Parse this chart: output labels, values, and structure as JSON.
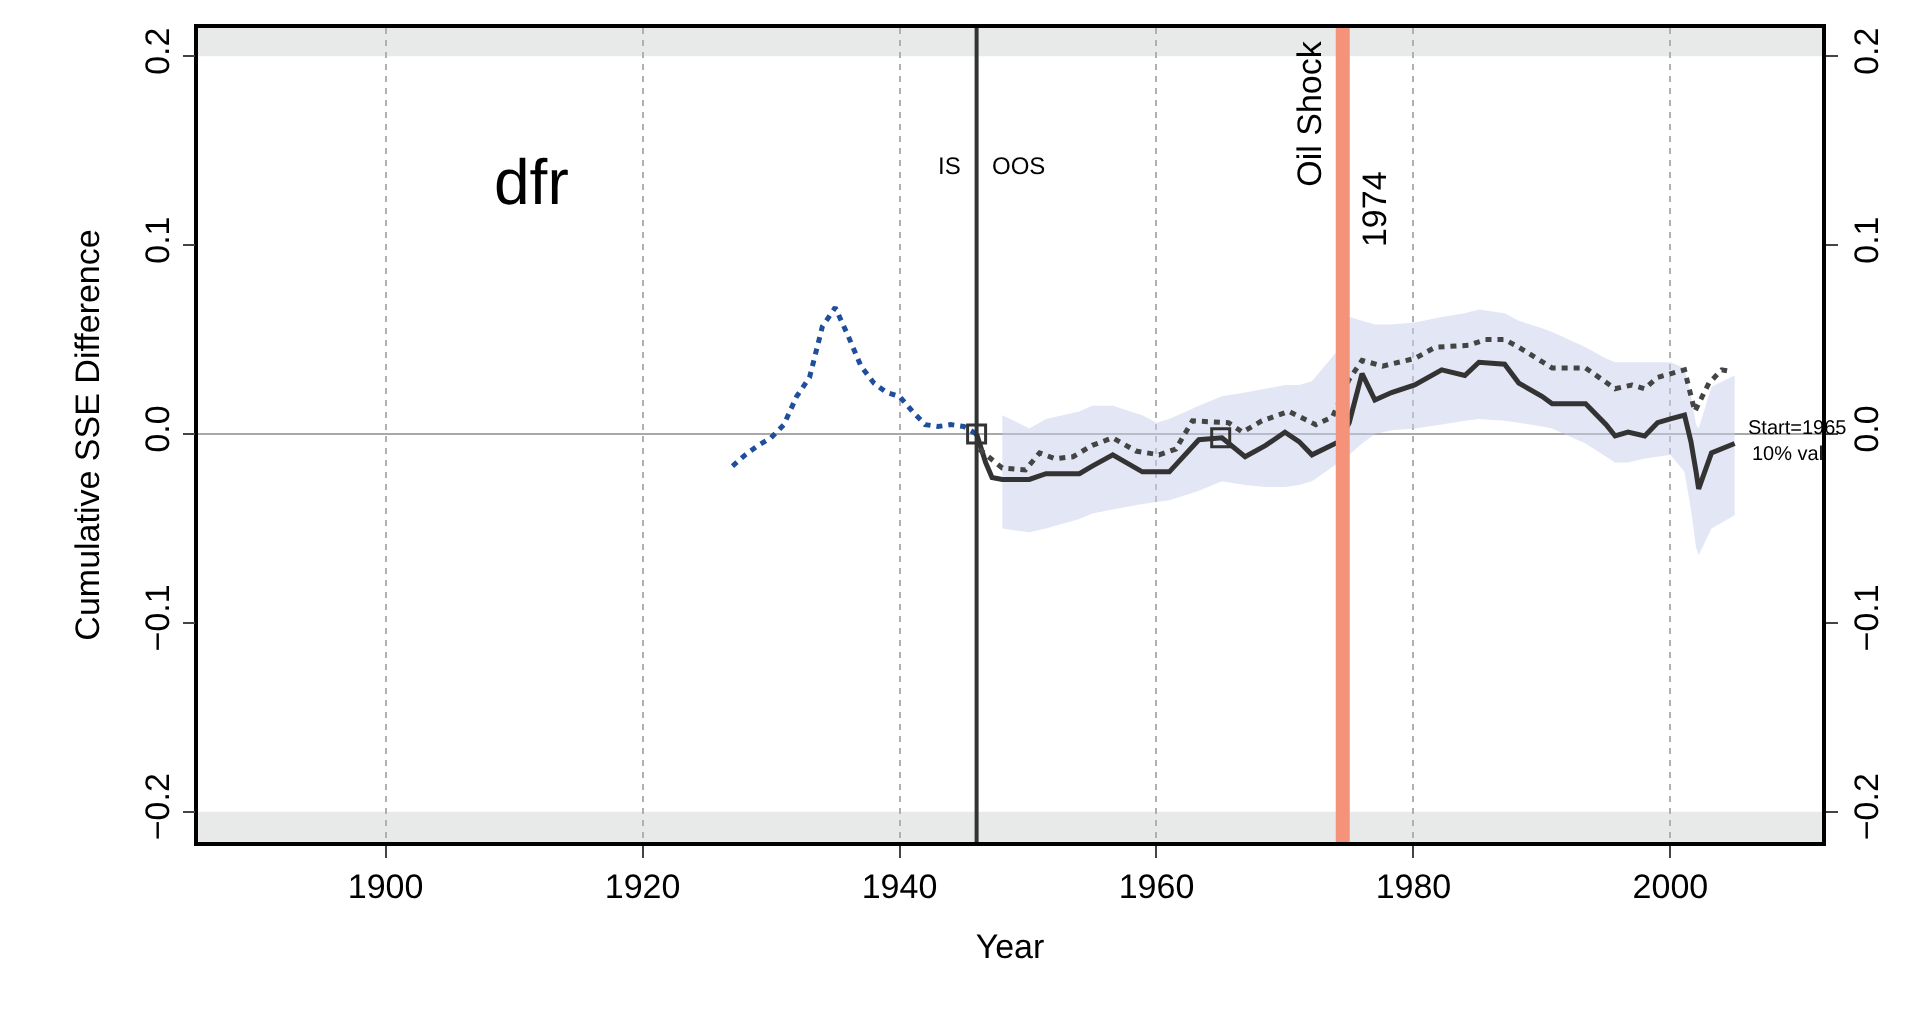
{
  "chart_data": {
    "type": "line",
    "title": "dfr",
    "xlabel": "Year",
    "ylabel": "Cumulative SSE Difference",
    "xlim": [
      1885.4,
      2011.8
    ],
    "xticks": [
      1900,
      1920,
      1940,
      1960,
      1980,
      2000
    ],
    "ylim": [
      -0.216,
      0.215
    ],
    "yticks": [
      {
        "value": -0.2,
        "label": "−0.2"
      },
      {
        "value": -0.1,
        "label": "−0.1"
      },
      {
        "value": 0,
        "label": "0.0"
      },
      0.1,
      0.2
    ],
    "y2lim": [
      -0.216,
      0.215
    ],
    "y2ticks": [
      {
        "value": -0.2,
        "label": "−0.2"
      },
      {
        "value": -0.1,
        "label": "−0.1"
      },
      {
        "value": 0,
        "label": "0.0"
      },
      0.1,
      0.2
    ],
    "grid": "x",
    "series": [
      {
        "color": "#1f4e9c",
        "line_style": "dotted",
        "marker": "none",
        "x": [
          1927,
          1928,
          1929,
          1930,
          1931,
          1932,
          1933,
          1934,
          1935,
          1936,
          1937,
          1938,
          1939,
          1940,
          1941,
          1942,
          1943,
          1944,
          1945,
          1946
        ],
        "values": [
          -0.017,
          -0.011,
          -0.006,
          -0.002,
          0.005,
          0.02,
          0.03,
          0.057,
          0.067,
          0.052,
          0.036,
          0.027,
          0.022,
          0.02,
          0.012,
          0.005,
          0.004,
          0.005,
          0.004,
          0.0
        ]
      },
      {
        "color": "#333333",
        "line_style": "solid",
        "marker": "none",
        "x": [
          1946,
          1946.7,
          1947.2,
          1948,
          1950.1,
          1951.4,
          1954,
          1955,
          1956.6,
          1958.9,
          1960,
          1961,
          1963.3,
          1965.1,
          1966.9,
          1968.5,
          1970,
          1971.1,
          1972.1,
          1974.2,
          1975,
          1976,
          1977,
          1978.3,
          1980.1,
          1982.2,
          1984,
          1985.1,
          1987.1,
          1988.2,
          1990,
          1990.8,
          1993.4,
          1995,
          1995.7,
          1996.7,
          1998,
          1999,
          2000,
          2001.1,
          2001.6,
          2002,
          2002.2,
          2003.2,
          2005
        ],
        "values": [
          0.0,
          -0.015,
          -0.023,
          -0.024,
          -0.024,
          -0.021,
          -0.021,
          -0.017,
          -0.011,
          -0.02,
          -0.02,
          -0.02,
          -0.003,
          -0.002,
          -0.012,
          -0.006,
          0.001,
          -0.004,
          -0.011,
          -0.004,
          0.006,
          0.032,
          0.018,
          0.022,
          0.026,
          0.034,
          0.031,
          0.038,
          0.037,
          0.027,
          0.02,
          0.016,
          0.016,
          0.005,
          -0.001,
          0.001,
          -0.001,
          0.006,
          0.008,
          0.01,
          -0.004,
          -0.02,
          -0.029,
          -0.01,
          -0.005
        ],
        "lower": [
          null,
          null,
          null,
          -0.05,
          -0.052,
          -0.05,
          -0.045,
          -0.042,
          -0.04,
          -0.037,
          -0.036,
          -0.035,
          -0.03,
          -0.025,
          -0.027,
          -0.028,
          -0.028,
          -0.027,
          -0.025,
          -0.015,
          -0.011,
          -0.005,
          0.0,
          0.002,
          0.003,
          0.005,
          0.007,
          0.008,
          0.007,
          0.006,
          0.004,
          0.003,
          -0.005,
          -0.012,
          -0.015,
          -0.015,
          -0.013,
          -0.012,
          -0.011,
          -0.02,
          -0.04,
          -0.06,
          -0.064,
          -0.05,
          -0.043
        ],
        "upper": [
          null,
          null,
          null,
          0.01,
          0.003,
          0.008,
          0.012,
          0.015,
          0.015,
          0.01,
          0.006,
          0.008,
          0.015,
          0.02,
          0.022,
          0.024,
          0.026,
          0.026,
          0.028,
          0.045,
          0.062,
          0.06,
          0.058,
          0.058,
          0.059,
          0.062,
          0.064,
          0.066,
          0.064,
          0.06,
          0.056,
          0.054,
          0.046,
          0.04,
          0.038,
          0.038,
          0.038,
          0.038,
          0.038,
          0.035,
          0.02,
          0.005,
          0.003,
          0.025,
          0.031
        ]
      },
      {
        "color": "#444444",
        "line_style": "dotted",
        "marker": "none",
        "x": [
          1946.2,
          1948,
          1949.8,
          1950.9,
          1952.1,
          1953.5,
          1955,
          1956.6,
          1958.4,
          1960.2,
          1961.5,
          1962.8,
          1965.6,
          1966.7,
          1968.2,
          1970.3,
          1972.4,
          1973.7,
          1975,
          1976,
          1977.6,
          1980.1,
          1981.7,
          1984.3,
          1985.6,
          1987.1,
          1988.2,
          1990.8,
          1993.4,
          1995.7,
          1997,
          1998,
          1999,
          2001.1,
          2001.9,
          2003,
          2004,
          2004.8
        ],
        "values": [
          -0.008,
          -0.018,
          -0.019,
          -0.01,
          -0.013,
          -0.012,
          -0.006,
          -0.002,
          -0.009,
          -0.011,
          -0.008,
          0.007,
          0.006,
          0.001,
          0.007,
          0.012,
          0.005,
          0.009,
          0.029,
          0.039,
          0.036,
          0.04,
          0.046,
          0.047,
          0.05,
          0.05,
          0.046,
          0.035,
          0.035,
          0.024,
          0.026,
          0.024,
          0.03,
          0.034,
          0.012,
          0.027,
          0.034,
          0.033
        ]
      },
      {
        "type": "scatter",
        "color": "#333333",
        "marker": "square",
        "x": [
          1946,
          1965
        ],
        "values": [
          0.0,
          -0.002
        ]
      }
    ],
    "ref_lines": [
      {
        "axis": "y",
        "value": 0,
        "color": "#a9a9a9"
      },
      {
        "axis": "x",
        "value": 1946,
        "color": "#333333"
      },
      {
        "axis": "x",
        "value": 1974.5,
        "label": "Oil Shock",
        "color": "#f4937a"
      }
    ],
    "bands": [
      {
        "axis": "y",
        "from": 0.2,
        "to": 0.215,
        "color": "#e8eaea"
      },
      {
        "axis": "y",
        "from": -0.216,
        "to": -0.2,
        "color": "#e8eaea"
      }
    ],
    "annotations": [
      "IS",
      "OOS",
      "1974",
      "Start=1965",
      "10% val"
    ]
  }
}
